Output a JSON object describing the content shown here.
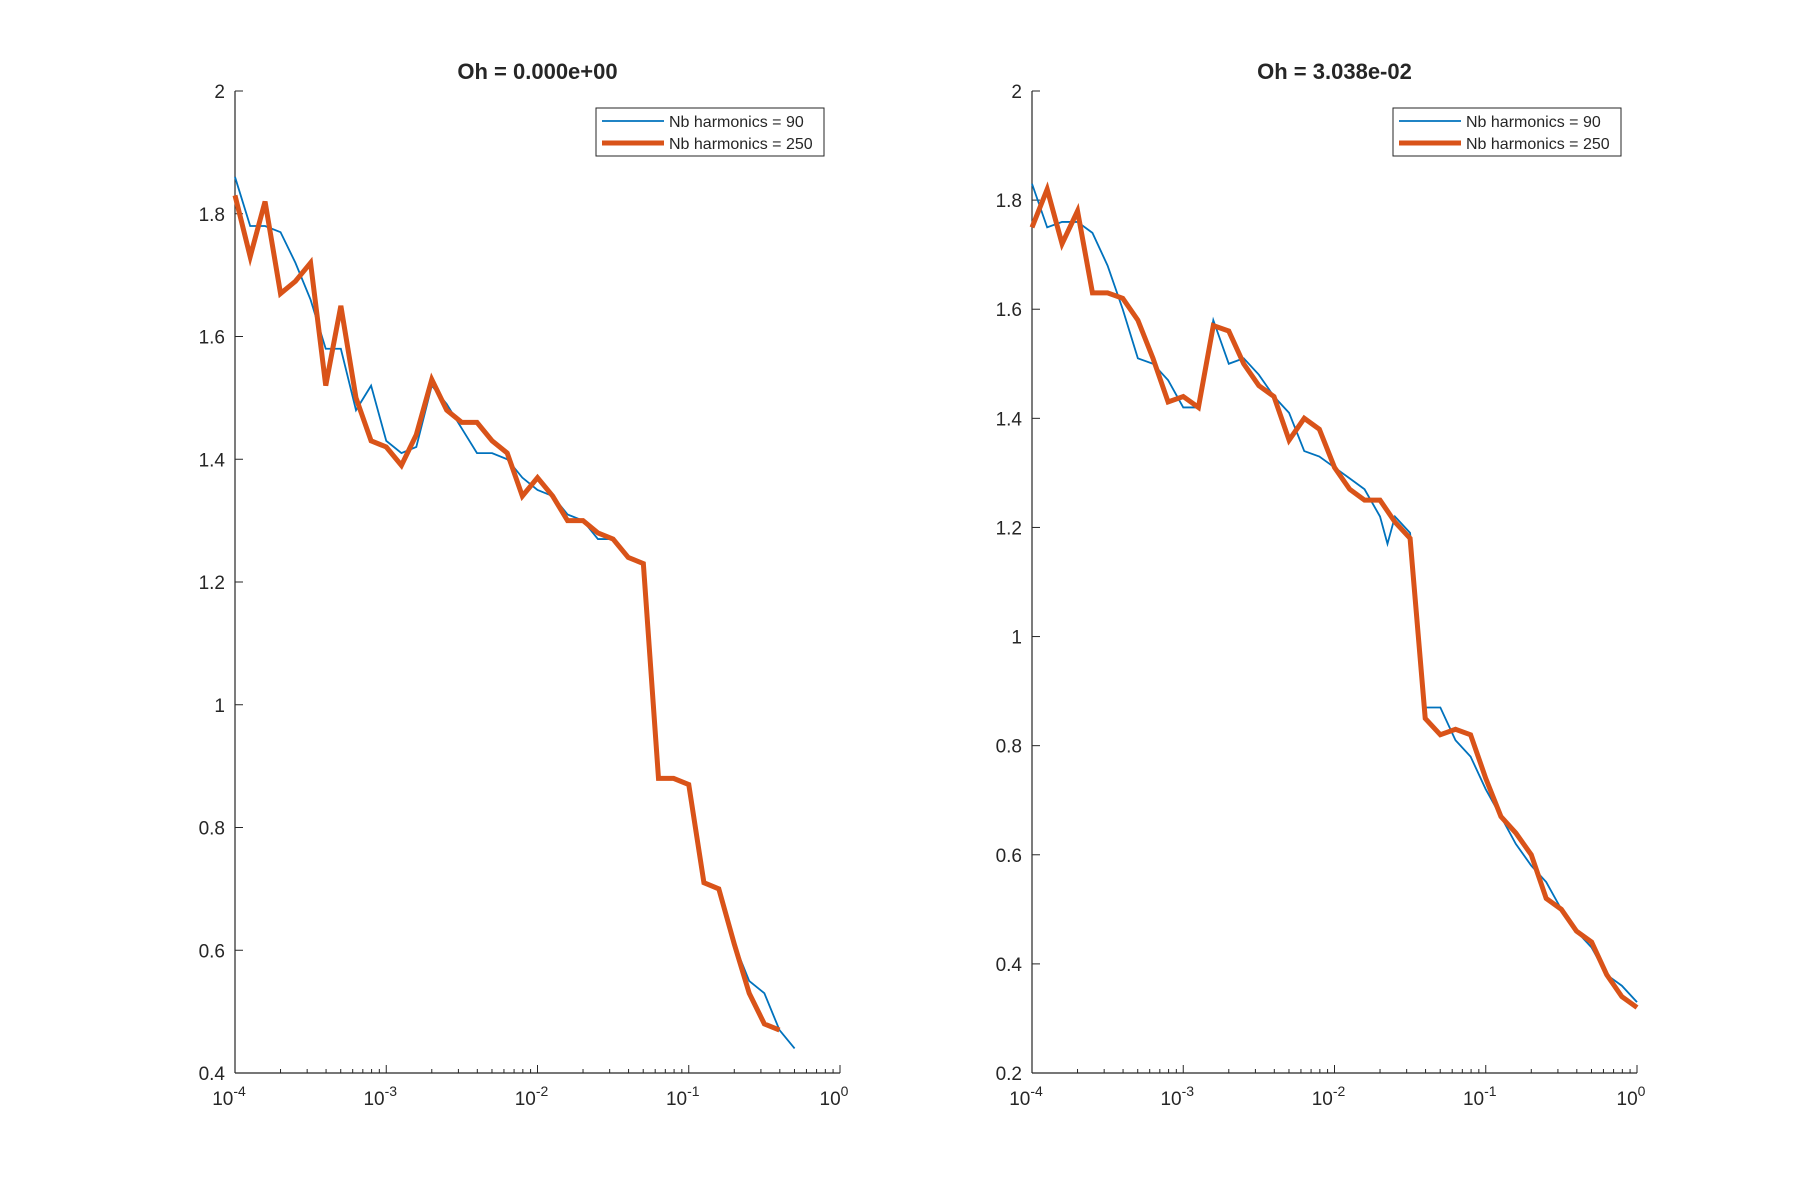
{
  "colors": {
    "series_thin": "#0072BD",
    "series_thick": "#D95319",
    "axis": "#262626",
    "background": "#ffffff"
  },
  "chart_data": [
    {
      "type": "line",
      "title": "Oh = 0.000e+00",
      "xscale": "log",
      "xlim": [
        0.0001,
        1
      ],
      "ylim": [
        0.4,
        2
      ],
      "yticks": [
        "0.4",
        "0.6",
        "0.8",
        "1",
        "1.2",
        "1.4",
        "1.6",
        "1.8",
        "2"
      ],
      "xticks": [
        {
          "base": "10",
          "exp": "-4"
        },
        {
          "base": "10",
          "exp": "-3"
        },
        {
          "base": "10",
          "exp": "-2"
        },
        {
          "base": "10",
          "exp": "-1"
        },
        {
          "base": "10",
          "exp": "0"
        }
      ],
      "grid": false,
      "legend_position": "top-right",
      "series": [
        {
          "name": "Nb harmonics = 90",
          "x": [
            0.0001,
            0.000126,
            0.000158,
            0.0002,
            0.000251,
            0.000316,
            0.000398,
            0.000501,
            0.000631,
            0.000794,
            0.001,
            0.00126,
            0.00158,
            0.002,
            0.00251,
            0.00316,
            0.00398,
            0.00501,
            0.00631,
            0.00794,
            0.01,
            0.0126,
            0.0158,
            0.02,
            0.0251,
            0.0316,
            0.0398,
            0.0501,
            0.0631,
            0.0794,
            0.1,
            0.126,
            0.158,
            0.2,
            0.251,
            0.316,
            0.398,
            0.501
          ],
          "y": [
            1.86,
            1.78,
            1.78,
            1.77,
            1.72,
            1.66,
            1.58,
            1.58,
            1.48,
            1.52,
            1.43,
            1.41,
            1.42,
            1.52,
            1.49,
            1.45,
            1.41,
            1.41,
            1.4,
            1.37,
            1.35,
            1.34,
            1.31,
            1.3,
            1.27,
            1.27,
            1.24,
            1.23,
            0.88,
            0.88,
            0.87,
            0.71,
            0.7,
            0.61,
            0.55,
            0.53,
            0.47,
            0.44
          ]
        },
        {
          "name": "Nb harmonics = 250",
          "x": [
            0.0001,
            0.000126,
            0.000158,
            0.0002,
            0.000251,
            0.000316,
            0.000398,
            0.000501,
            0.000631,
            0.000794,
            0.001,
            0.00126,
            0.00158,
            0.002,
            0.00251,
            0.00316,
            0.00398,
            0.00501,
            0.00631,
            0.00794,
            0.01,
            0.0126,
            0.0158,
            0.02,
            0.0251,
            0.0316,
            0.0398,
            0.0501,
            0.0631,
            0.0794,
            0.1,
            0.126,
            0.158,
            0.2,
            0.251,
            0.316,
            0.398
          ],
          "y": [
            1.83,
            1.73,
            1.82,
            1.67,
            1.69,
            1.72,
            1.52,
            1.65,
            1.5,
            1.43,
            1.42,
            1.39,
            1.44,
            1.53,
            1.48,
            1.46,
            1.46,
            1.43,
            1.41,
            1.34,
            1.37,
            1.34,
            1.3,
            1.3,
            1.28,
            1.27,
            1.24,
            1.23,
            0.88,
            0.88,
            0.87,
            0.71,
            0.7,
            0.61,
            0.53,
            0.48,
            0.47
          ]
        }
      ]
    },
    {
      "type": "line",
      "title": "Oh = 3.038e-02",
      "xscale": "log",
      "xlim": [
        0.0001,
        1
      ],
      "ylim": [
        0.2,
        2
      ],
      "yticks": [
        "0.2",
        "0.4",
        "0.6",
        "0.8",
        "1",
        "1.2",
        "1.4",
        "1.6",
        "1.8",
        "2"
      ],
      "xticks": [
        {
          "base": "10",
          "exp": "-4"
        },
        {
          "base": "10",
          "exp": "-3"
        },
        {
          "base": "10",
          "exp": "-2"
        },
        {
          "base": "10",
          "exp": "-1"
        },
        {
          "base": "10",
          "exp": "0"
        }
      ],
      "grid": false,
      "legend_position": "top-right",
      "series": [
        {
          "name": "Nb harmonics = 90",
          "x": [
            0.0001,
            0.000126,
            0.000158,
            0.0002,
            0.000251,
            0.000316,
            0.000398,
            0.000501,
            0.000631,
            0.000794,
            0.001,
            0.00126,
            0.00158,
            0.002,
            0.00251,
            0.00316,
            0.00398,
            0.00501,
            0.00631,
            0.00794,
            0.01,
            0.0126,
            0.0158,
            0.02,
            0.0224,
            0.0251,
            0.0316,
            0.0398,
            0.0501,
            0.0631,
            0.0794,
            0.1,
            0.126,
            0.158,
            0.2,
            0.251,
            0.316,
            0.398,
            0.501,
            0.631,
            0.794,
            1
          ],
          "y": [
            1.83,
            1.75,
            1.76,
            1.76,
            1.74,
            1.68,
            1.6,
            1.51,
            1.5,
            1.47,
            1.42,
            1.42,
            1.58,
            1.5,
            1.51,
            1.48,
            1.44,
            1.41,
            1.34,
            1.33,
            1.31,
            1.29,
            1.27,
            1.22,
            1.17,
            1.22,
            1.19,
            0.87,
            0.87,
            0.81,
            0.78,
            0.72,
            0.67,
            0.62,
            0.58,
            0.55,
            0.5,
            0.46,
            0.43,
            0.38,
            0.36,
            0.33
          ]
        },
        {
          "name": "Nb harmonics = 250",
          "x": [
            0.0001,
            0.000126,
            0.000158,
            0.0002,
            0.000251,
            0.000316,
            0.000398,
            0.000501,
            0.000631,
            0.000794,
            0.001,
            0.00126,
            0.00158,
            0.002,
            0.00251,
            0.00316,
            0.00398,
            0.00501,
            0.00631,
            0.00794,
            0.01,
            0.0126,
            0.0158,
            0.02,
            0.0251,
            0.0316,
            0.0398,
            0.0501,
            0.0631,
            0.0794,
            0.1,
            0.126,
            0.158,
            0.2,
            0.251,
            0.316,
            0.398,
            0.501,
            0.631,
            0.794,
            1
          ],
          "y": [
            1.75,
            1.82,
            1.72,
            1.78,
            1.63,
            1.63,
            1.62,
            1.58,
            1.51,
            1.43,
            1.44,
            1.42,
            1.57,
            1.56,
            1.5,
            1.46,
            1.44,
            1.36,
            1.4,
            1.38,
            1.31,
            1.27,
            1.25,
            1.25,
            1.21,
            1.18,
            0.85,
            0.82,
            0.83,
            0.82,
            0.74,
            0.67,
            0.64,
            0.6,
            0.52,
            0.5,
            0.46,
            0.44,
            0.38,
            0.34,
            0.32
          ]
        }
      ]
    }
  ]
}
